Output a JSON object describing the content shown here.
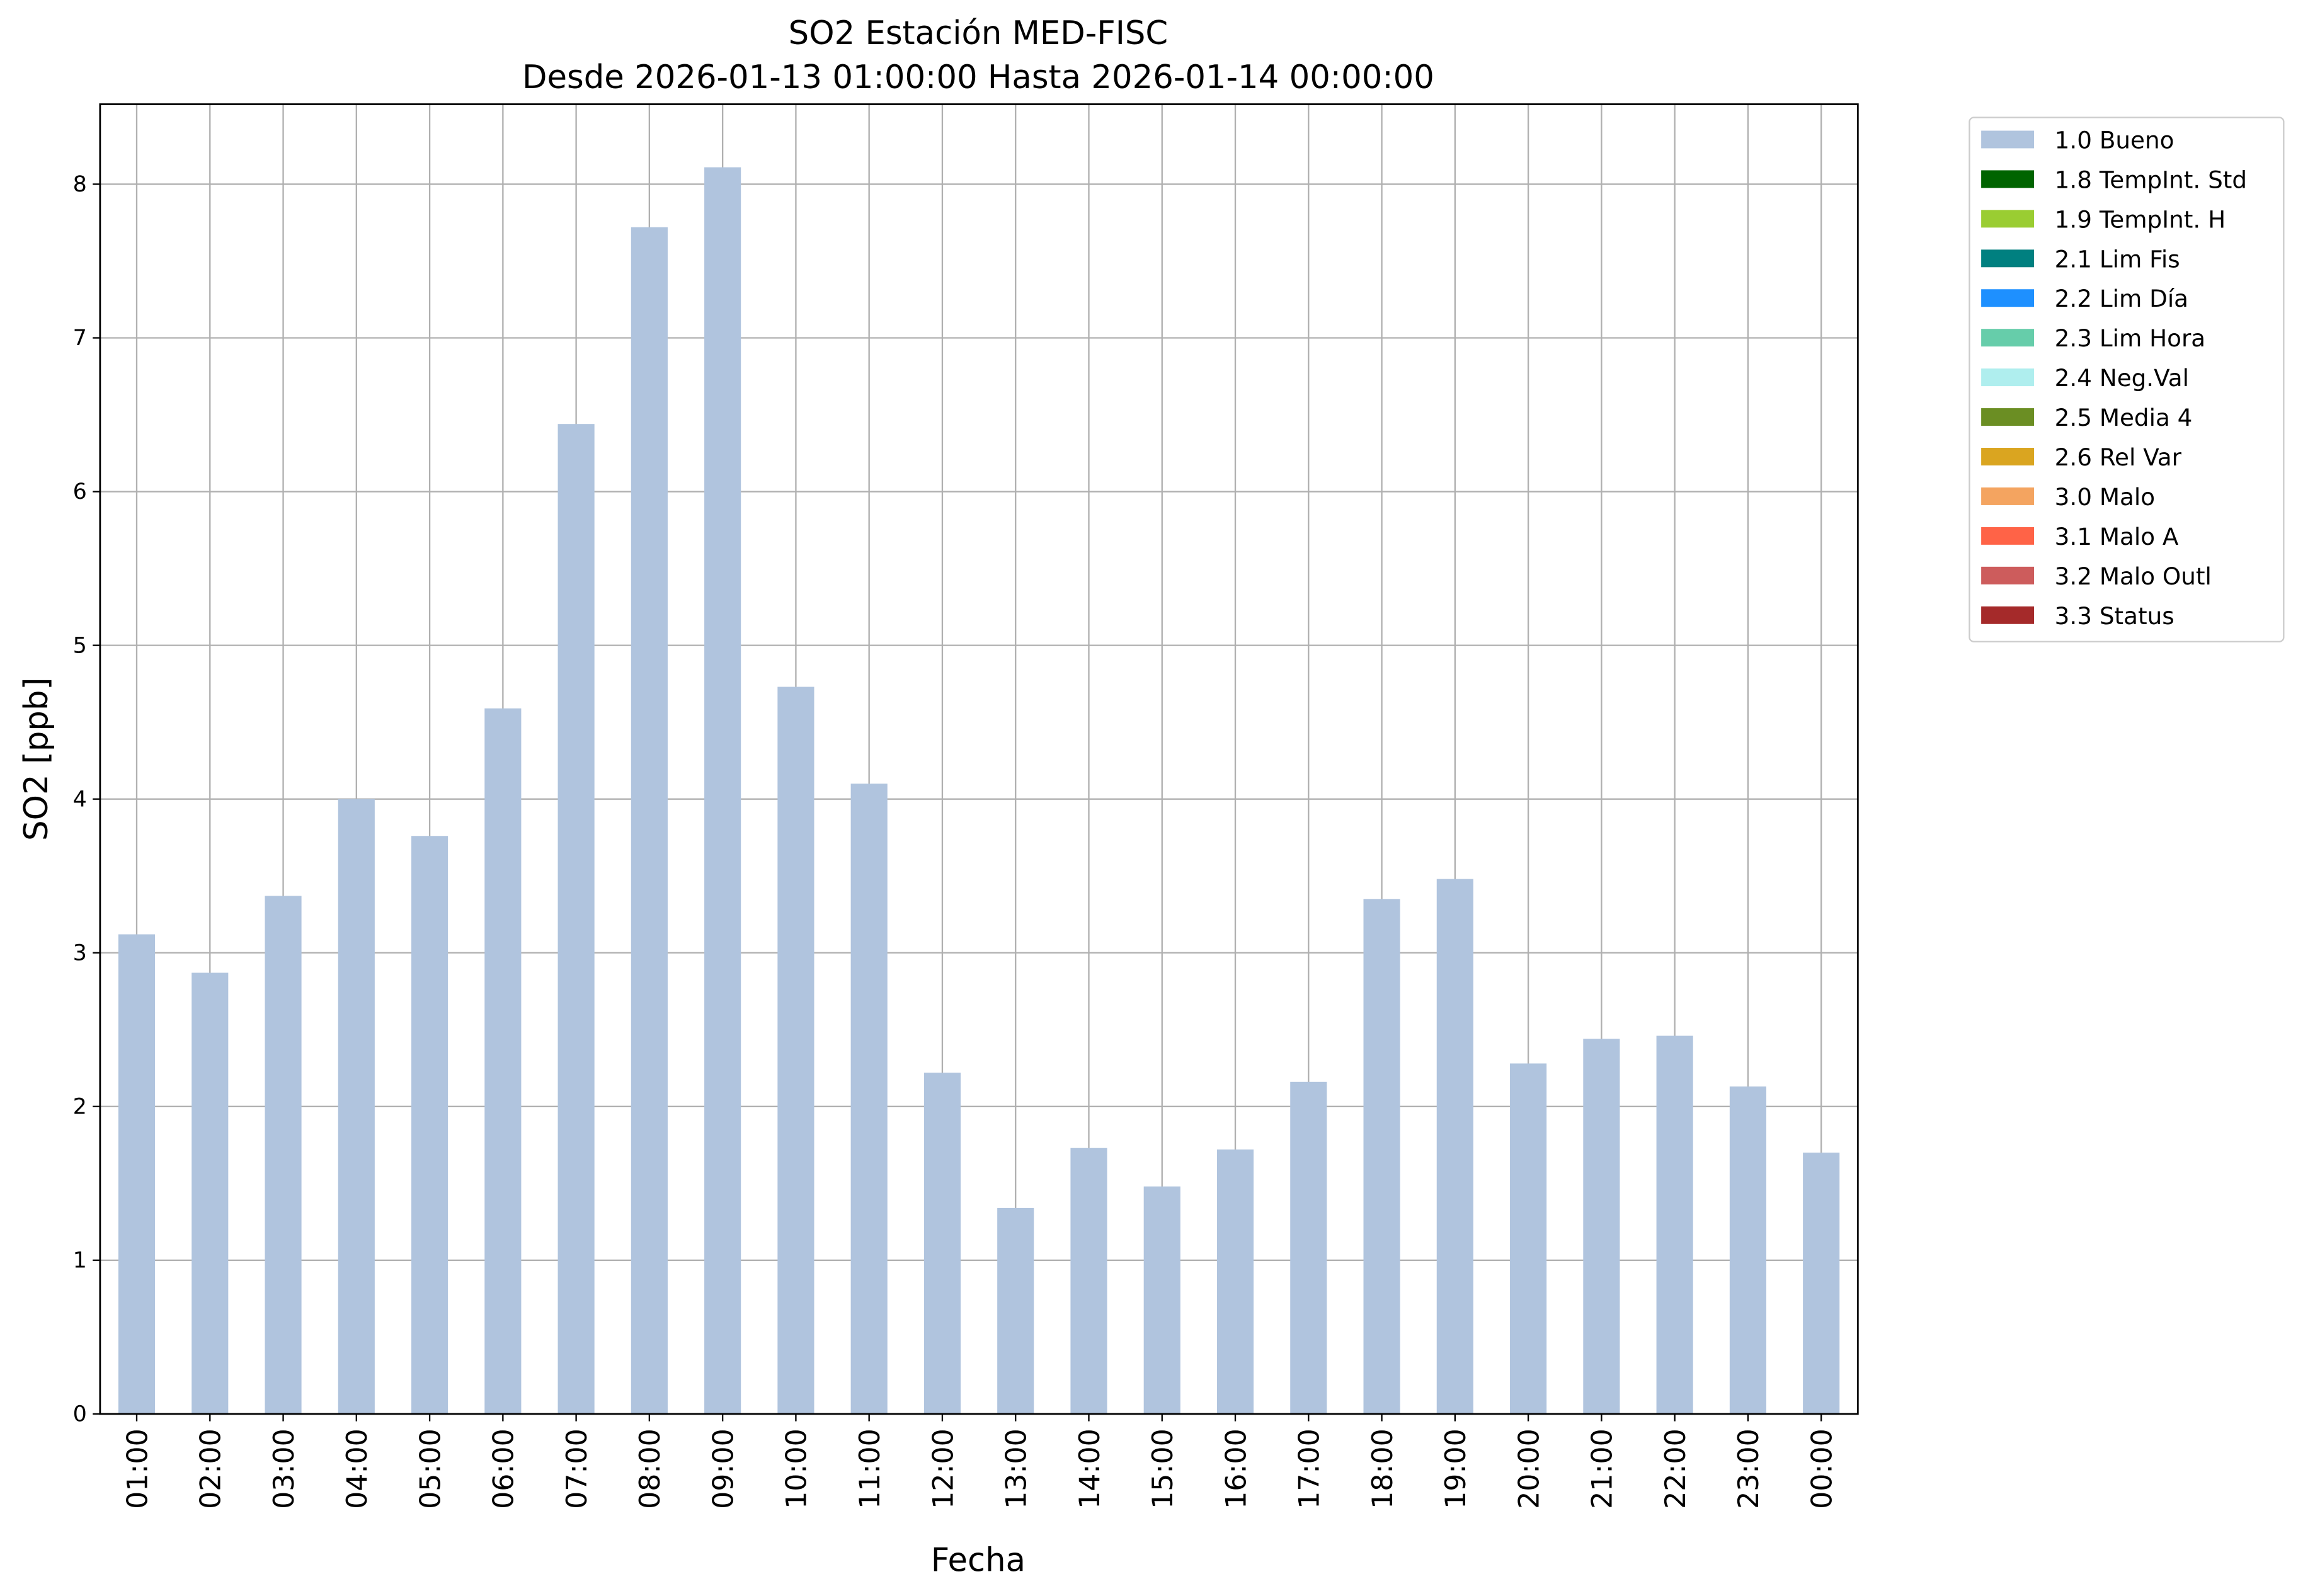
{
  "chart_data": {
    "type": "stacked-bar",
    "title": "SO2 Estación MED-FISC",
    "subtitle": "Desde 2026-01-13 01:00:00 Hasta 2026-01-14 00:00:00",
    "x_label": "Fecha",
    "y_label": "SO2 [ppb]",
    "categories": [
      "01:00",
      "02:00",
      "03:00",
      "04:00",
      "05:00",
      "06:00",
      "07:00",
      "08:00",
      "09:00",
      "10:00",
      "11:00",
      "12:00",
      "13:00",
      "14:00",
      "15:00",
      "16:00",
      "17:00",
      "18:00",
      "19:00",
      "20:00",
      "21:00",
      "22:00",
      "23:00",
      "00:00"
    ],
    "series": [
      {
        "name": "1.0 Bueno",
        "color": "#b0c4de",
        "values": [
          3.12,
          2.87,
          3.37,
          4.0,
          3.76,
          4.59,
          6.44,
          7.72,
          8.11,
          4.73,
          4.1,
          2.22,
          1.34,
          1.73,
          1.48,
          1.72,
          2.16,
          3.35,
          3.48,
          2.28,
          2.44,
          2.46,
          2.13,
          1.7
        ]
      },
      {
        "name": "1.8 TempInt. Std",
        "color": "#006400",
        "values": [
          0,
          0,
          0,
          0,
          0,
          0,
          0,
          0,
          0,
          0,
          0,
          0,
          0,
          0,
          0,
          0,
          0,
          0,
          0,
          0,
          0,
          0,
          0,
          0
        ]
      },
      {
        "name": "1.9 TempInt. H",
        "color": "#9acd32",
        "values": [
          0,
          0,
          0,
          0,
          0,
          0,
          0,
          0,
          0,
          0,
          0,
          0,
          0,
          0,
          0,
          0,
          0,
          0,
          0,
          0,
          0,
          0,
          0,
          0
        ]
      },
      {
        "name": "2.1 Lim Fis",
        "color": "#008080",
        "values": [
          0,
          0,
          0,
          0,
          0,
          0,
          0,
          0,
          0,
          0,
          0,
          0,
          0,
          0,
          0,
          0,
          0,
          0,
          0,
          0,
          0,
          0,
          0,
          0
        ]
      },
      {
        "name": "2.2 Lim Día",
        "color": "#1e90ff",
        "values": [
          0,
          0,
          0,
          0,
          0,
          0,
          0,
          0,
          0,
          0,
          0,
          0,
          0,
          0,
          0,
          0,
          0,
          0,
          0,
          0,
          0,
          0,
          0,
          0
        ]
      },
      {
        "name": "2.3 Lim Hora",
        "color": "#66cdaa",
        "values": [
          0,
          0,
          0,
          0,
          0,
          0,
          0,
          0,
          0,
          0,
          0,
          0,
          0,
          0,
          0,
          0,
          0,
          0,
          0,
          0,
          0,
          0,
          0,
          0
        ]
      },
      {
        "name": "2.4 Neg.Val",
        "color": "#afeeee",
        "values": [
          0,
          0,
          0,
          0,
          0,
          0,
          0,
          0,
          0,
          0,
          0,
          0,
          0,
          0,
          0,
          0,
          0,
          0,
          0,
          0,
          0,
          0,
          0,
          0
        ]
      },
      {
        "name": "2.5 Media 4",
        "color": "#6b8e23",
        "values": [
          0,
          0,
          0,
          0,
          0,
          0,
          0,
          0,
          0,
          0,
          0,
          0,
          0,
          0,
          0,
          0,
          0,
          0,
          0,
          0,
          0,
          0,
          0,
          0
        ]
      },
      {
        "name": "2.6 Rel Var",
        "color": "#daa520",
        "values": [
          0,
          0,
          0,
          0,
          0,
          0,
          0,
          0,
          0,
          0,
          0,
          0,
          0,
          0,
          0,
          0,
          0,
          0,
          0,
          0,
          0,
          0,
          0,
          0
        ]
      },
      {
        "name": "3.0 Malo",
        "color": "#f4a460",
        "values": [
          0,
          0,
          0,
          0,
          0,
          0,
          0,
          0,
          0,
          0,
          0,
          0,
          0,
          0,
          0,
          0,
          0,
          0,
          0,
          0,
          0,
          0,
          0,
          0
        ]
      },
      {
        "name": "3.1 Malo A",
        "color": "#ff6347",
        "values": [
          0,
          0,
          0,
          0,
          0,
          0,
          0,
          0,
          0,
          0,
          0,
          0,
          0,
          0,
          0,
          0,
          0,
          0,
          0,
          0,
          0,
          0,
          0,
          0
        ]
      },
      {
        "name": "3.2 Malo Outl",
        "color": "#cd5c5c",
        "values": [
          0,
          0,
          0,
          0,
          0,
          0,
          0,
          0,
          0,
          0,
          0,
          0,
          0,
          0,
          0,
          0,
          0,
          0,
          0,
          0,
          0,
          0,
          0,
          0
        ]
      },
      {
        "name": "3.3 Status",
        "color": "#a52a2a",
        "values": [
          0,
          0,
          0,
          0,
          0,
          0,
          0,
          0,
          0,
          0,
          0,
          0,
          0,
          0,
          0,
          0,
          0,
          0,
          0,
          0,
          0,
          0,
          0,
          0
        ]
      }
    ],
    "ylim": [
      0,
      8.52
    ],
    "yticks": [
      0,
      1,
      2,
      3,
      4,
      5,
      6,
      7,
      8
    ],
    "grid": true,
    "legend": "outside-right"
  }
}
